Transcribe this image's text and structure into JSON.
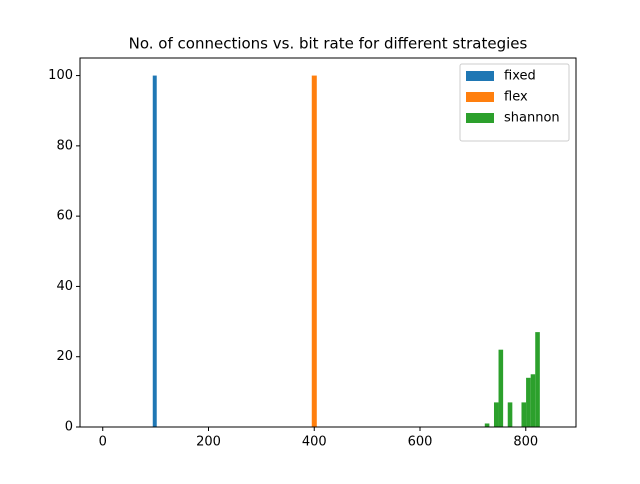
{
  "chart_data": {
    "type": "histogram",
    "title": "No. of connections vs. bit rate for different strategies",
    "series": [
      {
        "name": "fixed",
        "color": "#1f77b4",
        "bins": [
          94.6,
          102.1
        ],
        "values": [
          100
        ]
      },
      {
        "name": "flex",
        "color": "#ff7f0e",
        "bins": [
          395.3,
          404.8
        ],
        "values": [
          100
        ]
      },
      {
        "name": "shannon",
        "color": "#2ca02c",
        "bins": [
          722.5,
          731.2,
          739.9,
          748.5,
          757.2,
          765.9,
          774.6,
          783.2,
          791.9,
          800.6,
          809.3,
          817.9,
          826.6
        ],
        "values": [
          1,
          0,
          7,
          22,
          0,
          7,
          0,
          0,
          7,
          14,
          15,
          27
        ]
      }
    ],
    "xlim": [
      -43,
      895
    ],
    "xticks": [
      0,
      200,
      400,
      600,
      800
    ],
    "ylim": [
      0,
      105
    ],
    "yticks": [
      0,
      20,
      40,
      60,
      80,
      100
    ],
    "legend": "upper right"
  }
}
